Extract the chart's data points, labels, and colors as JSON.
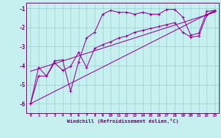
{
  "xlabel": "Windchill (Refroidissement éolien,°C)",
  "bg_color": "#c6eff0",
  "line_color": "#990099",
  "grid_color": "#99cccc",
  "axis_color": "#660066",
  "spine_color": "#660066",
  "xlim": [
    -0.5,
    23.5
  ],
  "ylim": [
    -6.5,
    -0.7
  ],
  "yticks": [
    -6,
    -5,
    -4,
    -3,
    -2,
    -1
  ],
  "xticks": [
    0,
    1,
    2,
    3,
    4,
    5,
    6,
    7,
    8,
    9,
    10,
    11,
    12,
    13,
    14,
    15,
    16,
    17,
    18,
    19,
    20,
    21,
    22,
    23
  ],
  "line1_x": [
    0,
    1,
    2,
    3,
    4,
    5,
    6,
    7,
    8,
    9,
    10,
    11,
    12,
    13,
    14,
    15,
    16,
    17,
    18,
    19,
    20,
    21,
    22,
    23
  ],
  "line1_y": [
    -6.0,
    -4.1,
    -4.55,
    -3.75,
    -3.7,
    -5.35,
    -3.8,
    -2.55,
    -2.25,
    -1.3,
    -1.1,
    -1.2,
    -1.2,
    -1.3,
    -1.2,
    -1.3,
    -1.3,
    -1.05,
    -1.05,
    -1.45,
    -2.4,
    -2.3,
    -1.15,
    -1.1
  ],
  "line2_x": [
    0,
    1,
    2,
    3,
    4,
    5,
    6,
    7,
    8,
    9,
    10,
    11,
    12,
    13,
    14,
    15,
    16,
    17,
    18,
    19,
    20,
    21,
    22,
    23
  ],
  "line2_y": [
    -6.0,
    -4.55,
    -4.55,
    -3.85,
    -4.25,
    -4.05,
    -3.3,
    -4.1,
    -3.1,
    -2.9,
    -2.75,
    -2.55,
    -2.45,
    -2.25,
    -2.15,
    -2.05,
    -1.95,
    -1.85,
    -1.75,
    -2.25,
    -2.5,
    -2.45,
    -1.35,
    -1.15
  ],
  "line3_x": [
    0,
    23
  ],
  "line3_y": [
    -6.0,
    -1.1
  ],
  "line4_x": [
    0,
    23
  ],
  "line4_y": [
    -4.3,
    -1.2
  ]
}
